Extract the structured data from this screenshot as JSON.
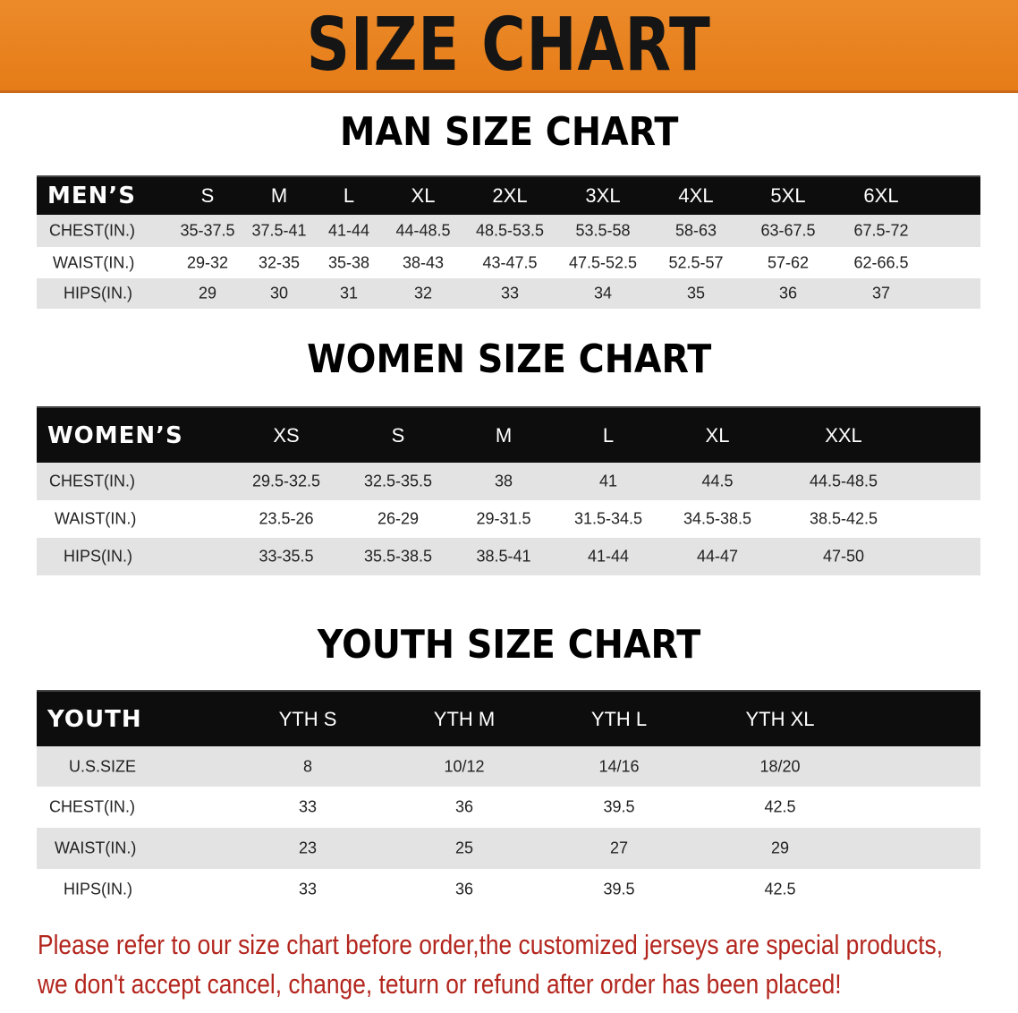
{
  "banner": "SIZE CHART",
  "tables": [
    {
      "title": "MAN SIZE CHART",
      "name": "MEN’S",
      "sizes": [
        "S",
        "M",
        "L",
        "XL",
        "2XL",
        "3XL",
        "4XL",
        "5XL",
        "6XL"
      ],
      "rows": [
        {
          "label": "CHEST(IN.)",
          "values": [
            "35-37.5",
            "37.5-41",
            "41-44",
            "44-48.5",
            "48.5-53.5",
            "53.5-58",
            "58-63",
            "63-67.5",
            "67.5-72"
          ]
        },
        {
          "label": "WAIST(IN.)",
          "values": [
            "29-32",
            "32-35",
            "35-38",
            "38-43",
            "43-47.5",
            "47.5-52.5",
            "52.5-57",
            "57-62",
            "62-66.5"
          ]
        },
        {
          "label": "HIPS(IN.)",
          "values": [
            "29",
            "30",
            "31",
            "32",
            "33",
            "34",
            "35",
            "36",
            "37"
          ]
        }
      ]
    },
    {
      "title": "WOMEN SIZE CHART",
      "name": "WOMEN’S",
      "sizes": [
        "XS",
        "S",
        "M",
        "L",
        "XL",
        "XXL"
      ],
      "rows": [
        {
          "label": "CHEST(IN.)",
          "values": [
            "29.5-32.5",
            "32.5-35.5",
            "38",
            "41",
            "44.5",
            "44.5-48.5"
          ]
        },
        {
          "label": "WAIST(IN.)",
          "values": [
            "23.5-26",
            "26-29",
            "29-31.5",
            "31.5-34.5",
            "34.5-38.5",
            "38.5-42.5"
          ]
        },
        {
          "label": "HIPS(IN.)",
          "values": [
            "33-35.5",
            "35.5-38.5",
            "38.5-41",
            "41-44",
            "44-47",
            "47-50"
          ]
        }
      ]
    },
    {
      "title": "YOUTH SIZE CHART",
      "name": "YOUTH",
      "sizes": [
        "YTH S",
        "YTH M",
        "YTH L",
        "YTH XL"
      ],
      "rows": [
        {
          "label": "U.S.SIZE",
          "values": [
            "8",
            "10/12",
            "14/16",
            "18/20"
          ]
        },
        {
          "label": "CHEST(IN.)",
          "values": [
            "33",
            "36",
            "39.5",
            "42.5"
          ]
        },
        {
          "label": "WAIST(IN.)",
          "values": [
            "23",
            "25",
            "27",
            "29"
          ]
        },
        {
          "label": "HIPS(IN.)",
          "values": [
            "33",
            "36",
            "39.5",
            "42.5"
          ]
        }
      ]
    }
  ],
  "notice": {
    "line1": "Please refer to our size chart before order,the customized jerseys are special products,",
    "line2": "we don't accept cancel, change, teturn or refund after order has been placed!"
  },
  "colors": {
    "banner": "#e57c17",
    "header": "#0d0d0d",
    "stripe": "#e3e3e3",
    "notice": "#b3261e"
  }
}
